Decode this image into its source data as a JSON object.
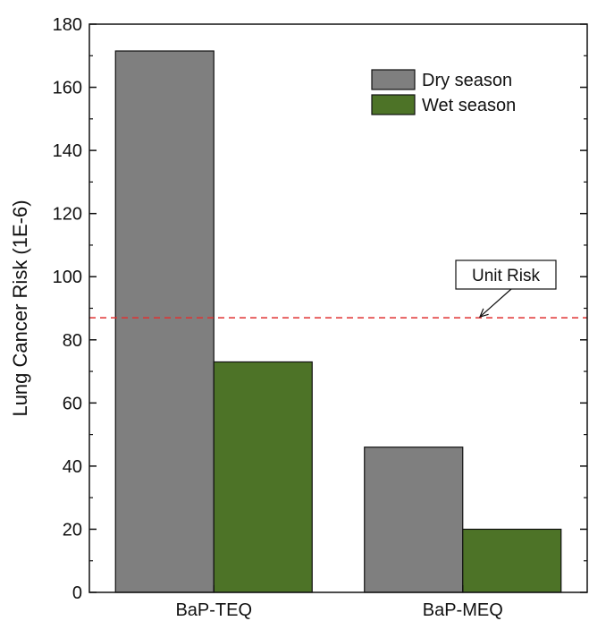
{
  "chart_data": {
    "type": "bar",
    "categories": [
      "BaP-TEQ",
      "BaP-MEQ"
    ],
    "series": [
      {
        "name": "Dry season",
        "values": [
          171.5,
          46
        ],
        "color": "#7f7f7f"
      },
      {
        "name": "Wet season",
        "values": [
          73,
          20
        ],
        "color": "#4d7327"
      }
    ],
    "title": "",
    "xlabel": "",
    "ylabel": "Lung Cancer Risk (1E-6)",
    "ylim": [
      0,
      180
    ],
    "yticks": [
      0,
      20,
      40,
      60,
      80,
      100,
      120,
      140,
      160,
      180
    ],
    "grid": false,
    "legend_position": "top-right",
    "reference_line": {
      "label": "Unit Risk",
      "value": 87,
      "color": "#e03030",
      "style": "dashed"
    }
  }
}
